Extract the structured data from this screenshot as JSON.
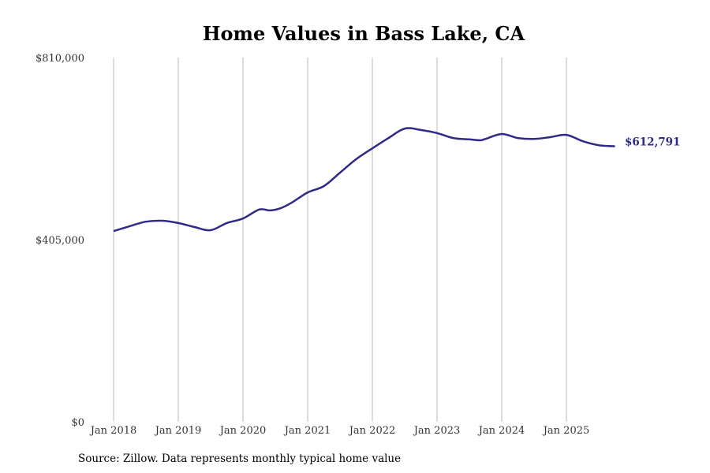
{
  "chart_data": {
    "type": "line",
    "title": "Home Values in Bass Lake, CA",
    "xlabel": "",
    "ylabel": "",
    "ylim": [
      0,
      810000
    ],
    "yticks": [
      0,
      405000,
      810000
    ],
    "ytick_labels": [
      "$0",
      "$405,000",
      "$810,000"
    ],
    "xticks": [
      "2018-01",
      "2019-01",
      "2020-01",
      "2021-01",
      "2022-01",
      "2023-01",
      "2024-01",
      "2025-01"
    ],
    "xtick_labels": [
      "Jan 2018",
      "Jan 2019",
      "Jan 2020",
      "Jan 2021",
      "Jan 2022",
      "Jan 2023",
      "Jan 2024",
      "Jan 2025"
    ],
    "grid": "vertical",
    "line_color": "#2e2a85",
    "series": [
      {
        "x": [
          "2018-01",
          "2018-04",
          "2018-07",
          "2018-10",
          "2019-01",
          "2019-04",
          "2019-07",
          "2019-10",
          "2020-01",
          "2020-04",
          "2020-06",
          "2020-08",
          "2020-10",
          "2021-01",
          "2021-04",
          "2021-07",
          "2021-10",
          "2022-01",
          "2022-04",
          "2022-07",
          "2022-10",
          "2023-01",
          "2023-04",
          "2023-07",
          "2023-09",
          "2023-10",
          "2024-01",
          "2024-04",
          "2024-07",
          "2024-10",
          "2025-01",
          "2025-04",
          "2025-07",
          "2025-10"
        ],
        "y": [
          424000,
          435000,
          445000,
          447000,
          442000,
          433000,
          426000,
          442000,
          452000,
          472000,
          470000,
          475000,
          487000,
          510000,
          524000,
          554000,
          584000,
          608000,
          631000,
          652000,
          649000,
          642000,
          631000,
          628000,
          626000,
          629000,
          640000,
          631000,
          629000,
          633000,
          638000,
          624000,
          615000,
          612791
        ]
      }
    ],
    "end_label": "$612,791"
  },
  "source": "Source: Zillow. Data represents monthly typical home value"
}
